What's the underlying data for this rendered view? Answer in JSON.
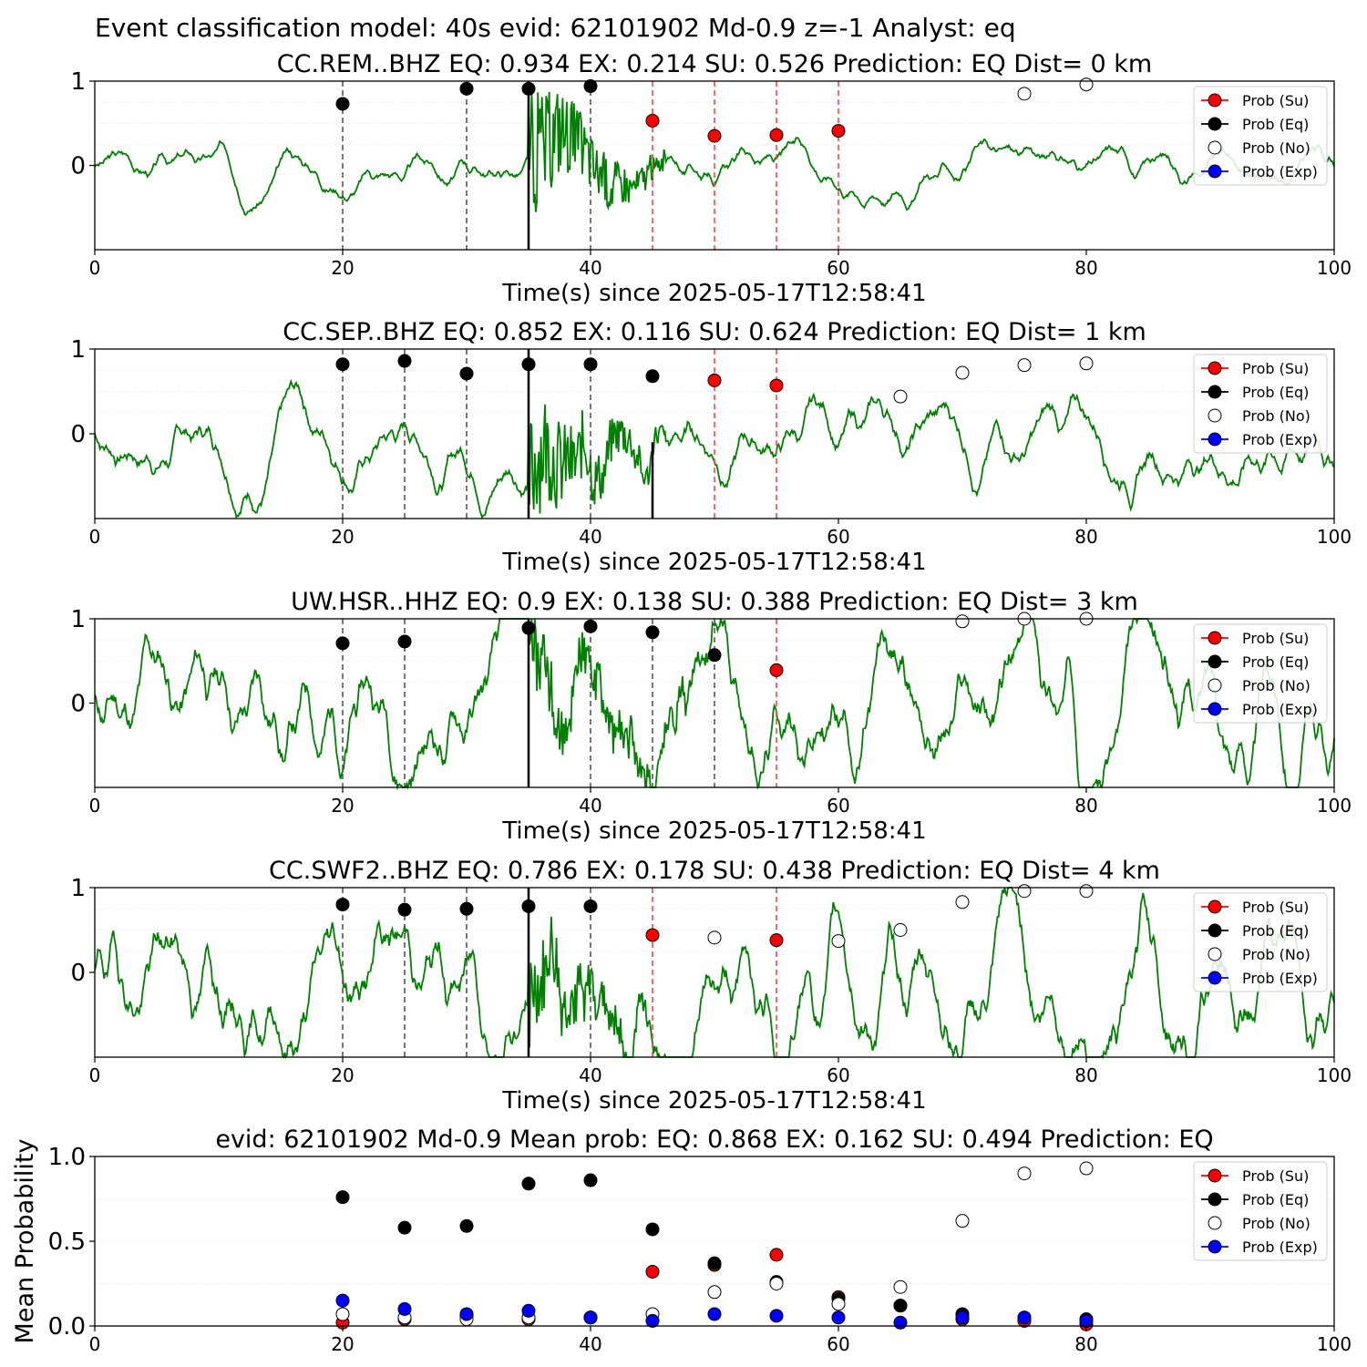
{
  "suptitle": "Event classification model: 40s evid: 62101902 Md-0.9 z=-1 Analyst: eq",
  "legend_labels": [
    "Prob (Su)",
    "Prob (Eq)",
    "Prob (No)",
    "Prob (Exp)"
  ],
  "colors": {
    "waveform": "#008000",
    "su": "#ff0000",
    "eq": "#000000",
    "no": "#ffffff",
    "exp": "#0000ff",
    "eq_marker_line": "#555555",
    "su_marker_line": "#ff4444",
    "grid": "#dddddd"
  },
  "chart_data": [
    {
      "type": "line",
      "title": "CC.REM..BHZ   EQ: 0.934  EX: 0.214  SU: 0.526   Prediction: EQ    Dist= 0 km",
      "xlabel": "Time(s) since 2025-05-17T12:58:41",
      "ylabel": "",
      "xlim": [
        0,
        100
      ],
      "ylim": [
        -1,
        1
      ],
      "xticks": [
        "0",
        "20",
        "40",
        "60",
        "80",
        "100"
      ],
      "yticks": [
        "0",
        "1"
      ],
      "legend": "top-right",
      "pick_time": 35,
      "eq_lines": [
        20,
        30,
        40
      ],
      "su_lines": [
        45,
        50,
        55,
        60
      ],
      "waveform": {
        "noise": 0.12,
        "burst_start": 35,
        "burst_end": 46,
        "burst_amp": 0.85,
        "seed": 3
      },
      "series": [
        {
          "name": "Prob (Su)",
          "x": [
            45,
            50,
            55,
            60
          ],
          "y": [
            0.53,
            0.35,
            0.36,
            0.41
          ]
        },
        {
          "name": "Prob (Eq)",
          "x": [
            20,
            30,
            35,
            40
          ],
          "y": [
            0.73,
            0.91,
            0.91,
            0.94
          ]
        },
        {
          "name": "Prob (No)",
          "x": [
            75,
            80
          ],
          "y": [
            0.85,
            0.96
          ]
        },
        {
          "name": "Prob (Exp)",
          "x": [],
          "y": []
        }
      ]
    },
    {
      "type": "line",
      "title": "CC.SEP..BHZ   EQ: 0.852  EX: 0.116  SU: 0.624   Prediction: EQ    Dist= 1 km",
      "xlabel": "Time(s) since 2025-05-17T12:58:41",
      "ylabel": "",
      "xlim": [
        0,
        100
      ],
      "ylim": [
        -1,
        1
      ],
      "xticks": [
        "0",
        "20",
        "40",
        "60",
        "80",
        "100"
      ],
      "yticks": [
        "0",
        "1"
      ],
      "legend": "top-right",
      "pick_time": 35,
      "pick_time_2": 45,
      "eq_lines": [
        20,
        25,
        30,
        40
      ],
      "su_lines": [
        50,
        55
      ],
      "waveform": {
        "noise": 0.22,
        "burst_start": 35,
        "burst_end": 46,
        "burst_amp": 0.8,
        "seed": 7
      },
      "series": [
        {
          "name": "Prob (Su)",
          "x": [
            50,
            55
          ],
          "y": [
            0.63,
            0.57
          ]
        },
        {
          "name": "Prob (Eq)",
          "x": [
            20,
            25,
            30,
            35,
            40,
            45
          ],
          "y": [
            0.82,
            0.86,
            0.71,
            0.82,
            0.82,
            0.68
          ]
        },
        {
          "name": "Prob (No)",
          "x": [
            65,
            70,
            75,
            80
          ],
          "y": [
            0.44,
            0.72,
            0.81,
            0.83
          ]
        },
        {
          "name": "Prob (Exp)",
          "x": [],
          "y": []
        }
      ]
    },
    {
      "type": "line",
      "title": "UW.HSR..HHZ   EQ: 0.9  EX: 0.138  SU: 0.388   Prediction: EQ    Dist= 3 km",
      "xlabel": "Time(s) since 2025-05-17T12:58:41",
      "ylabel": "",
      "xlim": [
        0,
        100
      ],
      "ylim": [
        -1,
        1
      ],
      "xticks": [
        "0",
        "20",
        "40",
        "60",
        "80",
        "100"
      ],
      "yticks": [
        "0",
        "1"
      ],
      "legend": "top-right",
      "pick_time": 35,
      "eq_lines": [
        20,
        25,
        40,
        45,
        50
      ],
      "su_lines": [
        55
      ],
      "waveform": {
        "noise": 0.45,
        "burst_start": 35,
        "burst_end": 50,
        "burst_amp": 0.5,
        "seed": 11
      },
      "series": [
        {
          "name": "Prob (Su)",
          "x": [
            55
          ],
          "y": [
            0.39
          ]
        },
        {
          "name": "Prob (Eq)",
          "x": [
            20,
            25,
            35,
            40,
            45,
            50
          ],
          "y": [
            0.71,
            0.73,
            0.89,
            0.91,
            0.84,
            0.57
          ]
        },
        {
          "name": "Prob (No)",
          "x": [
            70,
            75,
            80
          ],
          "y": [
            0.97,
            1.0,
            1.0
          ]
        },
        {
          "name": "Prob (Exp)",
          "x": [],
          "y": []
        }
      ]
    },
    {
      "type": "line",
      "title": "CC.SWF2..BHZ   EQ: 0.786  EX: 0.178  SU: 0.438   Prediction: EQ    Dist= 4 km",
      "xlabel": "Time(s) since 2025-05-17T12:58:41",
      "ylabel": "",
      "xlim": [
        0,
        100
      ],
      "ylim": [
        -1,
        1
      ],
      "xticks": [
        "0",
        "20",
        "40",
        "60",
        "80",
        "100"
      ],
      "yticks": [
        "0",
        "1"
      ],
      "legend": "top-right",
      "pick_time": 35,
      "eq_lines": [
        20,
        25,
        30,
        40
      ],
      "su_lines": [
        45,
        55
      ],
      "waveform": {
        "noise": 0.45,
        "burst_start": 35,
        "burst_end": 48,
        "burst_amp": 0.55,
        "seed": 19
      },
      "series": [
        {
          "name": "Prob (Su)",
          "x": [
            45,
            55
          ],
          "y": [
            0.44,
            0.38
          ]
        },
        {
          "name": "Prob (Eq)",
          "x": [
            20,
            25,
            30,
            35,
            40
          ],
          "y": [
            0.8,
            0.74,
            0.75,
            0.78,
            0.78
          ]
        },
        {
          "name": "Prob (No)",
          "x": [
            50,
            60,
            65,
            70,
            75,
            80
          ],
          "y": [
            0.41,
            0.37,
            0.5,
            0.83,
            0.96,
            0.96
          ]
        },
        {
          "name": "Prob (Exp)",
          "x": [],
          "y": []
        }
      ]
    },
    {
      "type": "scatter",
      "title": "evid: 62101902  Md-0.9   Mean prob:   EQ: 0.868  EX: 0.162  SU: 0.494   Prediction: EQ",
      "xlabel": "",
      "ylabel": "Mean Probability",
      "xlim": [
        0,
        100
      ],
      "ylim": [
        0,
        1
      ],
      "xticks": [
        "0",
        "20",
        "40",
        "60",
        "80",
        "100"
      ],
      "yticks": [
        "0.0",
        "0.5",
        "1.0"
      ],
      "legend": "top-right",
      "series": [
        {
          "name": "Prob (Su)",
          "x": [
            20,
            25,
            30,
            35,
            40,
            45,
            50,
            55,
            60,
            65,
            70,
            75,
            80
          ],
          "y": [
            0.02,
            0.04,
            0.06,
            0.04,
            0.05,
            0.32,
            0.36,
            0.42,
            0.17,
            0.12,
            0.04,
            0.03,
            0.01
          ]
        },
        {
          "name": "Prob (Eq)",
          "x": [
            20,
            25,
            30,
            35,
            40,
            45,
            50,
            55,
            60,
            65,
            70,
            75,
            80
          ],
          "y": [
            0.76,
            0.58,
            0.59,
            0.84,
            0.86,
            0.57,
            0.37,
            0.26,
            0.16,
            0.12,
            0.07,
            0.05,
            0.04
          ]
        },
        {
          "name": "Prob (No)",
          "x": [
            20,
            25,
            30,
            35,
            40,
            45,
            50,
            55,
            60,
            65,
            70,
            75,
            80
          ],
          "y": [
            0.07,
            0.05,
            0.04,
            0.05,
            0.05,
            0.07,
            0.2,
            0.25,
            0.13,
            0.23,
            0.62,
            0.9,
            0.93
          ]
        },
        {
          "name": "Prob (Exp)",
          "x": [
            20,
            25,
            30,
            35,
            40,
            45,
            50,
            55,
            60,
            65,
            70,
            75,
            80
          ],
          "y": [
            0.15,
            0.1,
            0.07,
            0.09,
            0.05,
            0.03,
            0.07,
            0.06,
            0.05,
            0.02,
            0.05,
            0.05,
            0.03
          ]
        }
      ]
    }
  ]
}
